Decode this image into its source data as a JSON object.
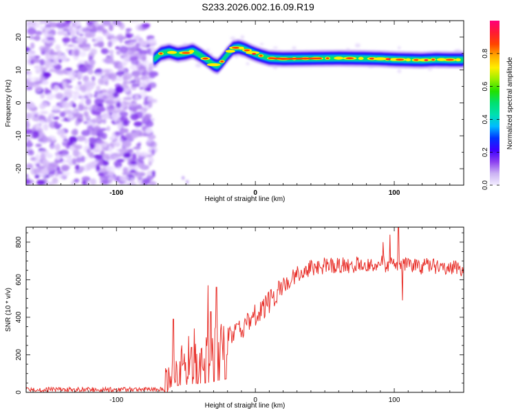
{
  "figure": {
    "title": "S233.2026.002.16.09.R19"
  },
  "chart_data": [
    {
      "type": "heatmap",
      "name": "spectrogram",
      "xlabel": "Height of straight line (km)",
      "ylabel": "Frequency (Hz)",
      "xlim": [
        -165,
        150
      ],
      "ylim": [
        -25,
        25
      ],
      "x_ticks": [
        -100,
        0,
        100
      ],
      "y_ticks": [
        -20,
        -10,
        0,
        10,
        20
      ],
      "noise_region_x": [
        -165,
        -73
      ],
      "signal_start_x": -73,
      "signal_ridge": {
        "x": [
          -73,
          -68,
          -62,
          -56,
          -50,
          -45,
          -40,
          -35,
          -30,
          -27,
          -24,
          -20,
          -16,
          -12,
          -8,
          -4,
          0,
          5,
          10,
          20,
          40,
          60,
          80,
          90,
          100,
          110,
          120,
          130,
          140,
          150
        ],
        "y": [
          13.2,
          15.0,
          15.6,
          14.8,
          15.2,
          15.8,
          14.6,
          13.2,
          11.6,
          11.2,
          12.6,
          14.8,
          16.6,
          16.9,
          16.4,
          15.6,
          14.9,
          14.2,
          13.6,
          13.4,
          13.5,
          13.6,
          13.5,
          13.4,
          13.2,
          13.1,
          13.0,
          13.2,
          13.1,
          13.1
        ]
      },
      "colorbar": {
        "label": "Normalized spectral amplitude",
        "range": [
          0,
          1
        ],
        "ticks": [
          0.0,
          0.2,
          0.4,
          0.6,
          0.8
        ],
        "tick_labels": [
          "0.0",
          "0.2",
          "0.4",
          "0.6",
          "0.8"
        ],
        "colors": [
          "#f3eeff",
          "#cbb2f3",
          "#8c3ff0",
          "#3c00ff",
          "#0033ff",
          "#00bbff",
          "#00e0b0",
          "#00e070",
          "#22e000",
          "#99ee00",
          "#ffee00",
          "#ffaa00",
          "#ff4400",
          "#ff1a33",
          "#ff007a"
        ]
      }
    },
    {
      "type": "line",
      "name": "snr",
      "xlabel": "Height of straight line (km)",
      "ylabel": "SNR (10 * v/v)",
      "xlim": [
        -165,
        150
      ],
      "ylim": [
        0,
        880
      ],
      "x_ticks": [
        -100,
        0,
        100
      ],
      "y_ticks": [
        0,
        200,
        400,
        600,
        800
      ],
      "series": [
        {
          "name": "SNR",
          "color": "#e8302a",
          "trend_x": [
            -165,
            -66,
            -63,
            -60,
            -55,
            -50,
            -45,
            -40,
            -35,
            -30,
            -25,
            -20,
            -15,
            -10,
            -5,
            0,
            5,
            10,
            15,
            20,
            25,
            30,
            40,
            50,
            60,
            70,
            80,
            90,
            100,
            110,
            120,
            130,
            140,
            150
          ],
          "trend_y": [
            15,
            15,
            60,
            130,
            150,
            160,
            180,
            190,
            200,
            230,
            260,
            290,
            310,
            340,
            380,
            410,
            440,
            480,
            520,
            570,
            600,
            630,
            660,
            675,
            680,
            680,
            680,
            685,
            680,
            670,
            670,
            670,
            660,
            660
          ],
          "spikes": [
            {
              "x": -59,
              "y": 390
            },
            {
              "x": -53,
              "y": 250
            },
            {
              "x": -48,
              "y": 300
            },
            {
              "x": -44,
              "y": 340
            },
            {
              "x": -40,
              "y": 210
            },
            {
              "x": -34,
              "y": 570
            },
            {
              "x": -32,
              "y": 430
            },
            {
              "x": -28,
              "y": 560
            },
            {
              "x": -25,
              "y": 330
            },
            {
              "x": 92,
              "y": 800
            },
            {
              "x": 97,
              "y": 840
            },
            {
              "x": 103,
              "y": 880
            },
            {
              "x": 106,
              "y": 490
            }
          ]
        }
      ]
    }
  ]
}
